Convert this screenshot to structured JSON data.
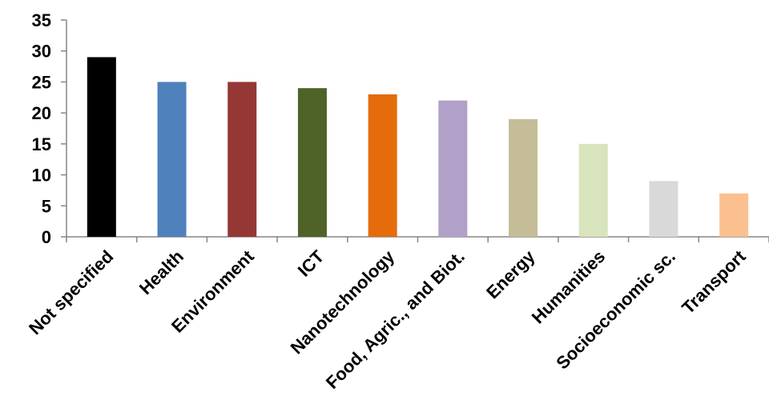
{
  "chart_data": {
    "type": "bar",
    "title": "",
    "xlabel": "",
    "ylabel": "",
    "ylim": [
      0,
      35
    ],
    "yticks": [
      0,
      5,
      10,
      15,
      20,
      25,
      30,
      35
    ],
    "grid": false,
    "legend": "none",
    "categories": [
      "Not specified",
      "Health",
      "Environment",
      "ICT",
      "Nanotechnology",
      "Food, Agric., and Biot.",
      "Energy",
      "Humanities",
      "Socioeconomic sc.",
      "Transport"
    ],
    "values": [
      29,
      25,
      25,
      24,
      23,
      22,
      19,
      15,
      9,
      7
    ],
    "colors": [
      "#000000",
      "#4f81bd",
      "#953735",
      "#4f6228",
      "#e46c0a",
      "#b1a0c7",
      "#c4bd97",
      "#d8e4bc",
      "#d9d9d9",
      "#fac090"
    ]
  }
}
